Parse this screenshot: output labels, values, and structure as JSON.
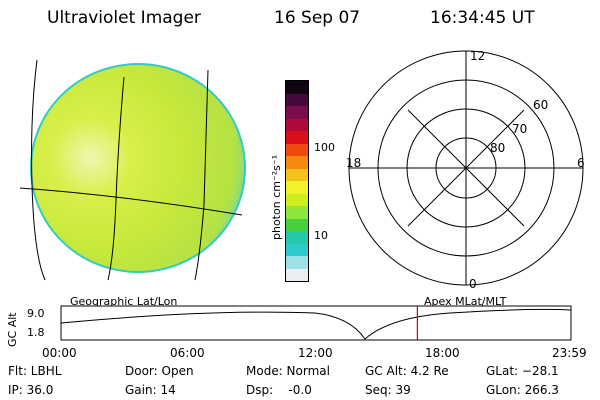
{
  "header": {
    "title": "Ultraviolet Imager",
    "date": "16 Sep 07",
    "time": "16:34:45 UT"
  },
  "colorbar": {
    "unit_label": "photon cm⁻²s⁻¹",
    "tick_high": "100",
    "tick_low": "10",
    "colors": [
      "#e8eef2",
      "#9fe0e6",
      "#2ec9cc",
      "#26c6aa",
      "#47d13f",
      "#8ee63a",
      "#cfee22",
      "#f3f12b",
      "#f4c21a",
      "#f48a12",
      "#f04a10",
      "#d8101c",
      "#b00a3c",
      "#7a0b4e",
      "#45093f",
      "#120513"
    ]
  },
  "polar": {
    "labels": {
      "mlt_12": "12",
      "mlt_18": "18",
      "mlt_6": "6",
      "mlt_0": "0",
      "lat_60": "60",
      "lat_70": "70",
      "lat_80": "80"
    }
  },
  "timeline": {
    "left_label": "Geographic Lat/Lon",
    "right_label": "Apex MLat/MLT",
    "y_axis_label": "GC Alt",
    "y_max": "9.0",
    "y_min": "1.8",
    "time_ticks": [
      "00:00",
      "06:00",
      "12:00",
      "18:00",
      "23:59"
    ],
    "current_time_fraction": 0.6988,
    "marker_color": "#e00000"
  },
  "info": {
    "filter": "Flt: LBHL",
    "ip": "IP: 36.0",
    "door": "Door: Open",
    "gain": "Gain: 14",
    "mode": "Mode: Normal",
    "dsp": "Dsp:    -0.0",
    "gc_alt": "GC Alt: 4.2 Re",
    "seq": "Seq: 39",
    "glat": "GLat: −28.1",
    "glon": "GLon: 266.3"
  }
}
